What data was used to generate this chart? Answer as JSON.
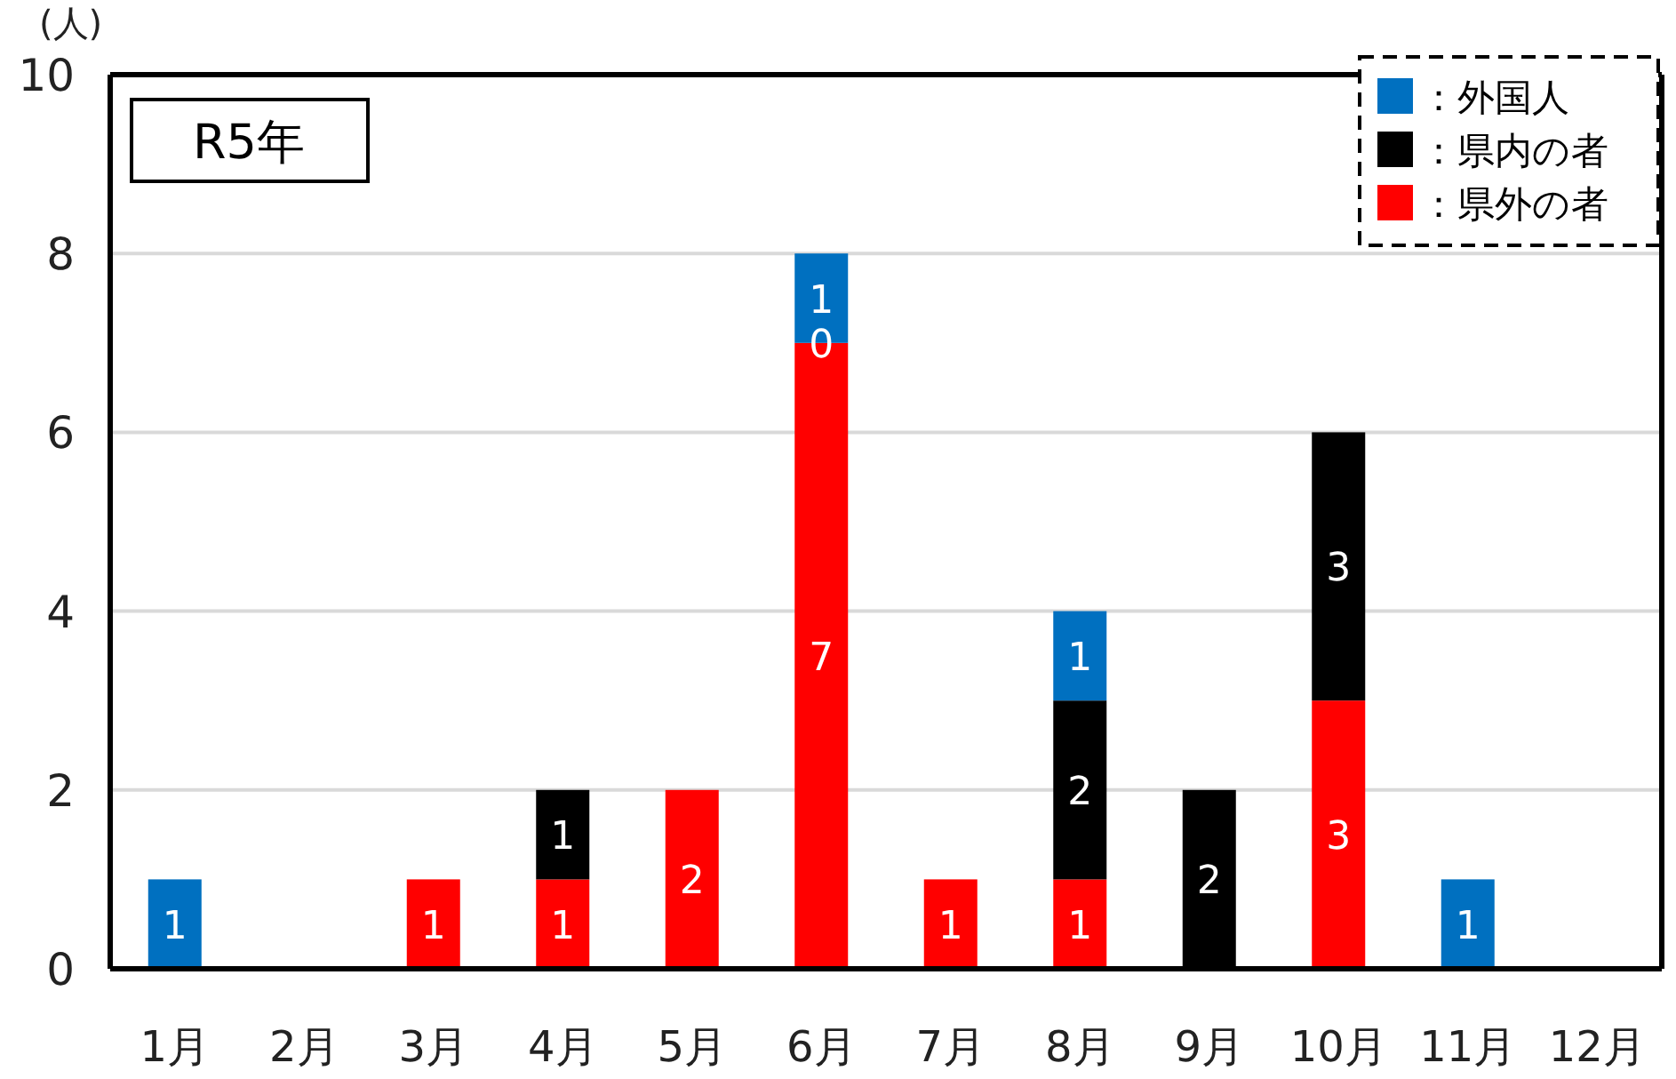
{
  "chart_data": {
    "type": "bar",
    "stacked": true,
    "title": "R5年",
    "ylabel": "(人)",
    "categories": [
      "1月",
      "2月",
      "3月",
      "4月",
      "5月",
      "6月",
      "7月",
      "8月",
      "9月",
      "10月",
      "11月",
      "12月"
    ],
    "series": [
      {
        "name": "：県外の者",
        "color": "#ff0000",
        "values": [
          0,
          0,
          1,
          1,
          2,
          7,
          1,
          1,
          0,
          3,
          0,
          0
        ],
        "value_labels": [
          null,
          null,
          "1",
          "1",
          "2",
          "7",
          "1",
          "1",
          null,
          "3",
          null,
          null
        ]
      },
      {
        "name": "：県内の者",
        "color": "#000000",
        "values": [
          0,
          0,
          0,
          1,
          0,
          0,
          0,
          2,
          2,
          3,
          0,
          0
        ],
        "value_labels": [
          null,
          null,
          null,
          "1",
          null,
          "0",
          null,
          "2",
          "2",
          "3",
          null,
          null
        ]
      },
      {
        "name": "：外国人",
        "color": "#0070c0",
        "values": [
          1,
          0,
          0,
          0,
          0,
          1,
          0,
          1,
          0,
          0,
          1,
          0
        ],
        "value_labels": [
          "1",
          null,
          null,
          null,
          null,
          "1",
          null,
          "1",
          null,
          null,
          "1",
          null
        ]
      }
    ],
    "ylim": [
      0,
      10
    ],
    "yticks": [
      0,
      2,
      4,
      6,
      8,
      10
    ],
    "grid": "y",
    "legend": "top right"
  }
}
